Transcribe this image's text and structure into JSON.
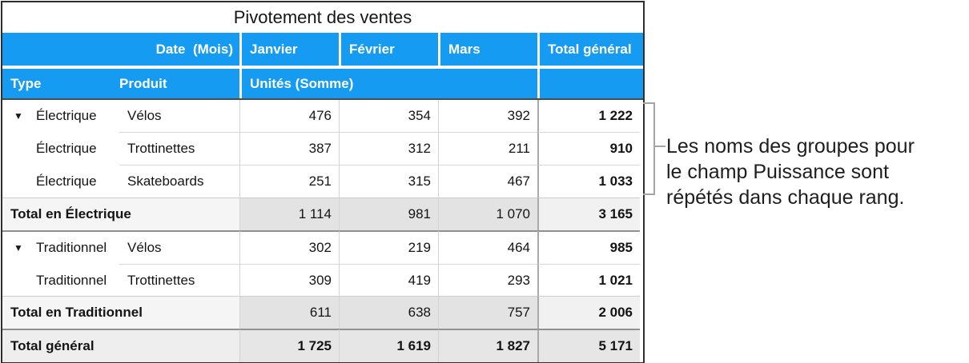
{
  "table": {
    "title": "Pivotement des ventes",
    "header_row1": {
      "label": "Date  (Mois)",
      "months": [
        "Janvier",
        "Février",
        "Mars"
      ],
      "total": "Total général"
    },
    "header_row2": {
      "type": "Type",
      "produit": "Produit",
      "units": "Unités (Somme)"
    },
    "rows": [
      {
        "kind": "data",
        "triangle": "▼",
        "type": "Électrique",
        "produit": "Vélos",
        "values": [
          "476",
          "354",
          "392"
        ],
        "total": "1 222",
        "sep": "none"
      },
      {
        "kind": "data",
        "triangle": "",
        "type": "Électrique",
        "produit": "Trottinettes",
        "values": [
          "387",
          "312",
          "211"
        ],
        "total": "910",
        "sep": "partial"
      },
      {
        "kind": "data",
        "triangle": "",
        "type": "Électrique",
        "produit": "Skateboards",
        "values": [
          "251",
          "315",
          "467"
        ],
        "total": "1 033",
        "sep": "partial"
      },
      {
        "kind": "subtotal",
        "label": "Total en Électrique",
        "values": [
          "1 114",
          "981",
          "1 070"
        ],
        "total": "3 165",
        "sep": "light"
      },
      {
        "kind": "data",
        "triangle": "▼",
        "type": "Traditionnel",
        "produit": "Vélos",
        "values": [
          "302",
          "219",
          "464"
        ],
        "total": "985",
        "sep": "medium"
      },
      {
        "kind": "data",
        "triangle": "",
        "type": "Traditionnel",
        "produit": "Trottinettes",
        "values": [
          "309",
          "419",
          "293"
        ],
        "total": "1 021",
        "sep": "partial"
      },
      {
        "kind": "subtotal",
        "label": "Total en Traditionnel",
        "values": [
          "611",
          "638",
          "757"
        ],
        "total": "2 006",
        "sep": "light"
      },
      {
        "kind": "grand",
        "label": "Total général",
        "values": [
          "1 725",
          "1 619",
          "1 827"
        ],
        "total": "5 171",
        "sep": "medium"
      }
    ]
  },
  "annotation": {
    "lines": [
      "Les noms des groupes pour",
      "le champ Puissance sont",
      "répétés dans chaque rang."
    ]
  },
  "icons": {
    "disclosure_triangle": "▼"
  },
  "colors": {
    "header_blue": "#169bf2",
    "subtotal_month_bg": "#e3e3e3",
    "subtotal_label_bg": "#f5f5f5",
    "grand_total_bg": "#e6e6e6",
    "bracket_gray": "#a5a5a5",
    "separator_dark": "#909090",
    "separator_light": "#d8d8d8"
  }
}
